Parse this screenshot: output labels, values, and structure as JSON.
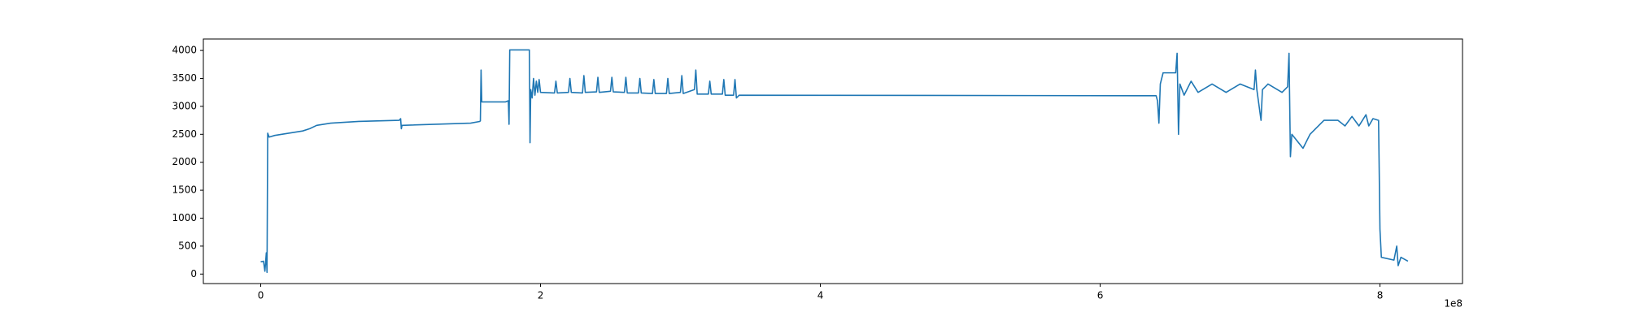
{
  "chart_data": {
    "type": "line",
    "x_offset_label": "1e8",
    "xlim": [
      -0.41,
      8.59
    ],
    "ylim": [
      -170,
      4205
    ],
    "xticks": [
      0,
      2,
      4,
      6,
      8
    ],
    "yticks": [
      0,
      500,
      1000,
      1500,
      2000,
      2500,
      3000,
      3500,
      4000
    ],
    "grid": false,
    "x": [
      0.0,
      0.02,
      0.03,
      0.04,
      0.045,
      0.05,
      0.06,
      0.1,
      0.3,
      0.35,
      0.4,
      0.5,
      0.7,
      0.99,
      1.0,
      1.005,
      1.01,
      1.5,
      1.565,
      1.57,
      1.575,
      1.58,
      1.75,
      1.77,
      1.775,
      1.78,
      1.92,
      1.925,
      1.93,
      1.94,
      1.95,
      1.96,
      1.97,
      1.98,
      1.99,
      2.0,
      2.1,
      2.11,
      2.12,
      2.2,
      2.21,
      2.22,
      2.3,
      2.31,
      2.32,
      2.4,
      2.41,
      2.42,
      2.5,
      2.51,
      2.52,
      2.6,
      2.61,
      2.62,
      2.7,
      2.71,
      2.72,
      2.8,
      2.81,
      2.82,
      2.9,
      2.91,
      2.92,
      3.0,
      3.01,
      3.02,
      3.1,
      3.11,
      3.12,
      3.2,
      3.21,
      3.22,
      3.3,
      3.31,
      3.32,
      3.38,
      3.39,
      3.4,
      3.42,
      6.4,
      6.41,
      6.42,
      6.43,
      6.45,
      6.5,
      6.54,
      6.55,
      6.56,
      6.57,
      6.6,
      6.65,
      6.7,
      6.8,
      6.9,
      7.0,
      7.1,
      7.11,
      7.12,
      7.15,
      7.16,
      7.2,
      7.3,
      7.34,
      7.35,
      7.36,
      7.37,
      7.45,
      7.5,
      7.6,
      7.7,
      7.75,
      7.8,
      7.85,
      7.9,
      7.92,
      7.95,
      7.99,
      8.0,
      8.01,
      8.1,
      8.12,
      8.13,
      8.15,
      8.2
    ],
    "series": [
      {
        "color": "#1f77b4",
        "values": [
          220,
          230,
          50,
          380,
          30,
          2520,
          2450,
          2480,
          2560,
          2600,
          2660,
          2700,
          2730,
          2750,
          2780,
          2600,
          2660,
          2700,
          2730,
          2740,
          3650,
          3080,
          3080,
          3100,
          2680,
          4010,
          4010,
          2350,
          3300,
          3150,
          3500,
          3200,
          3450,
          3250,
          3480,
          3250,
          3240,
          3450,
          3240,
          3250,
          3500,
          3250,
          3240,
          3550,
          3250,
          3260,
          3520,
          3250,
          3270,
          3520,
          3260,
          3250,
          3520,
          3240,
          3240,
          3500,
          3240,
          3230,
          3480,
          3230,
          3230,
          3500,
          3230,
          3250,
          3550,
          3230,
          3300,
          3650,
          3220,
          3220,
          3450,
          3220,
          3220,
          3480,
          3200,
          3200,
          3480,
          3150,
          3200,
          3190,
          3100,
          2700,
          3400,
          3600,
          3600,
          3600,
          3950,
          2500,
          3400,
          3200,
          3450,
          3250,
          3400,
          3250,
          3400,
          3300,
          3650,
          3300,
          2750,
          3300,
          3400,
          3250,
          3350,
          3950,
          2100,
          2500,
          2250,
          2500,
          2750,
          2750,
          2650,
          2820,
          2650,
          2850,
          2650,
          2780,
          2750,
          800,
          300,
          250,
          500,
          150,
          300,
          230
        ]
      }
    ]
  }
}
